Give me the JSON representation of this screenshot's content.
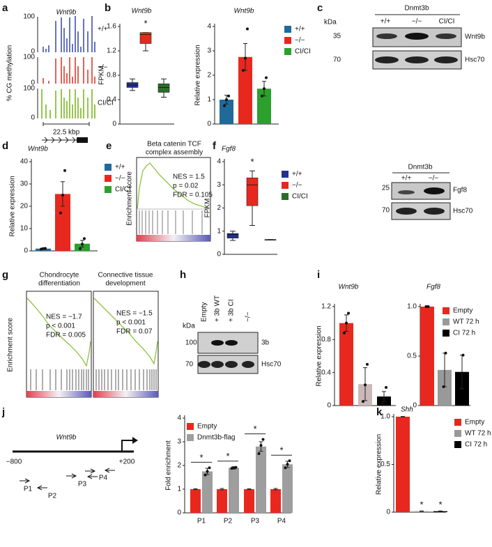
{
  "panel_labels": [
    "a",
    "b",
    "c",
    "d",
    "e",
    "f",
    "g",
    "h",
    "i",
    "j",
    "k"
  ],
  "panel_a": {
    "title": "Wnt9b",
    "ylabel": "% CG methylation",
    "tracks": [
      "+/+",
      "−/−",
      "CI/CI"
    ],
    "track_ticks": [
      100,
      0,
      100,
      0,
      100,
      0
    ],
    "scale": "22.5 kbp"
  },
  "blot_c": {
    "header": "Dnmt3b",
    "lanes": [
      "+/+",
      "−/−",
      "CI/CI"
    ],
    "unit": "kDa",
    "markers": [
      35,
      70
    ],
    "bands": [
      "Wnt9b",
      "Hsc70"
    ]
  },
  "gsea_e": {
    "title_lines": [
      "Beta catenin TCF",
      "complex assembly"
    ],
    "ylabel": "Enrichment score",
    "stats": [
      "NES = 1.5",
      "p = 0.02",
      "FDR = 0.105"
    ]
  },
  "blot_f": {
    "header": "Dnmt3b",
    "lanes": [
      "+/+",
      "−/−"
    ],
    "markers": [
      25,
      70
    ],
    "bands": [
      "Fgf8",
      "Hsc70"
    ]
  },
  "gsea_g": {
    "ylabel": "Enrichment score",
    "plots": [
      {
        "title_lines": [
          "Chondrocyte",
          "differentiation"
        ],
        "stats": [
          "NES = −1.7",
          "p < 0.001",
          "FDR = 0.005"
        ]
      },
      {
        "title_lines": [
          "Connective tissue",
          "development"
        ],
        "stats": [
          "NES = −1.5",
          "p < 0.001",
          "FDR = 0.07"
        ]
      }
    ]
  },
  "blot_h": {
    "unit": "kDa",
    "lanes": [
      "Empty",
      "+ 3b WT",
      "+ 3b CI",
      "−/−"
    ],
    "markers": [
      100,
      70
    ],
    "bands": [
      "3b",
      "Hsc70"
    ]
  },
  "diagram_j": {
    "gene": "Wnt9b",
    "start": "−800",
    "end": "+200",
    "primers": [
      "P1",
      "P2",
      "P3",
      "P4"
    ]
  },
  "chart_data": [
    {
      "type": "box",
      "title": "Wnt9b",
      "ylabel": "FPKM",
      "ylim": [
        0,
        1.6
      ],
      "yticks": [
        0,
        0.4,
        0.8,
        1.2,
        1.6
      ],
      "colors": [
        "#23318a",
        "#e8281e",
        "#2a6e2a"
      ],
      "boxes": [
        {
          "min": 0.55,
          "q1": 0.6,
          "median": 0.64,
          "q3": 0.68,
          "max": 0.74
        },
        {
          "min": 1.2,
          "q1": 1.32,
          "median": 1.47,
          "q3": 1.5,
          "max": 1.5
        },
        {
          "min": 0.44,
          "q1": 0.52,
          "median": 0.6,
          "q3": 0.66,
          "max": 0.74
        }
      ],
      "stars": [
        null,
        "*",
        null
      ]
    },
    {
      "type": "bar",
      "title": "Wnt9b",
      "ylabel": "Relative expression",
      "ylim": [
        0,
        4
      ],
      "yticks": [
        0,
        1,
        2,
        3,
        4
      ],
      "names": [
        "+/+",
        "−/−",
        "CI/CI"
      ],
      "colors": [
        "#1f6a9a",
        "#e8281e",
        "#2ca02c"
      ],
      "values": [
        1.0,
        2.75,
        1.45
      ],
      "errors": [
        0.18,
        0.55,
        0.3
      ],
      "points": [
        [
          0.75,
          1.0,
          1.15
        ],
        [
          2.2,
          2.7,
          3.9
        ],
        [
          1.15,
          1.45,
          1.9
        ]
      ]
    },
    {
      "type": "bar",
      "title": "Wnt9b",
      "ylabel": "Relative expression",
      "ylim": [
        0,
        40
      ],
      "yticks": [
        0,
        10,
        20,
        30,
        40
      ],
      "names": [
        "+/+",
        "−/−",
        "CI/CI"
      ],
      "colors": [
        "#1f6a9a",
        "#e8281e",
        "#2ca02c"
      ],
      "values": [
        1.0,
        25.5,
        3.2
      ],
      "errors": [
        0.2,
        5.5,
        1.5
      ],
      "points": [
        [
          0.8,
          1.0,
          1.1
        ],
        [
          17,
          25,
          36
        ],
        [
          1,
          3,
          5.5
        ]
      ]
    },
    {
      "type": "box",
      "title": "Fgf8",
      "ylabel": "FPKM",
      "ylim": [
        0,
        4
      ],
      "yticks": [
        0,
        1,
        2,
        3,
        4
      ],
      "names": [
        "+/+",
        "−/−",
        "CI/CI"
      ],
      "colors": [
        "#23318a",
        "#e8281e",
        "#2a6e2a"
      ],
      "boxes": [
        {
          "min": 0.6,
          "q1": 0.7,
          "median": 0.85,
          "q3": 0.9,
          "max": 1.0
        },
        {
          "min": 1.25,
          "q1": 2.1,
          "median": 3.0,
          "q3": 3.3,
          "max": 3.6
        },
        {
          "min": 0.62,
          "q1": 0.62,
          "median": 0.63,
          "q3": 0.64,
          "max": 0.64
        }
      ],
      "stars": [
        null,
        "*",
        null
      ]
    },
    {
      "type": "bar",
      "title": "Wnt9b",
      "ylabel": "Relative expression",
      "ylim": [
        0,
        1.2
      ],
      "yticks": [
        0,
        0.4,
        0.8,
        1.2
      ],
      "colors": [
        "#e8281e",
        "#cbb9b9",
        "#000000"
      ],
      "values": [
        1.0,
        0.26,
        0.11
      ],
      "errors": [
        0.1,
        0.2,
        0.06
      ],
      "points": [
        [
          0.88,
          1.0,
          1.12
        ],
        [
          0.05,
          0.25,
          0.5
        ],
        [
          0.03,
          0.08,
          0.22
        ]
      ]
    },
    {
      "type": "bar",
      "title": "Fgf8",
      "ylim": [
        0,
        1
      ],
      "yticks": [
        0,
        0.5,
        {
          "value": 1,
          "label": "1.0"
        }
      ],
      "names": [
        "Empty",
        "WT 72 h",
        "CI 72 h"
      ],
      "colors": [
        "#e8281e",
        "#999999",
        "#000000"
      ],
      "values": [
        1.0,
        0.36,
        0.34
      ],
      "errors": [
        0.005,
        0.17,
        0.17
      ],
      "points": [
        [
          1.0,
          1.0
        ],
        [
          0.19,
          0.53
        ],
        [
          0.17,
          0.51
        ]
      ]
    },
    {
      "type": "grouped_bar",
      "ylabel": "Fold enrichment",
      "ylim": [
        0,
        4
      ],
      "yticks": [
        0,
        1,
        2,
        3,
        4
      ],
      "categories": [
        "P1",
        "P2",
        "P3",
        "P4"
      ],
      "series": [
        {
          "name": "Empty",
          "color": "#e8281e",
          "values": [
            1,
            1,
            1,
            1
          ],
          "errors": [
            0.02,
            0.03,
            0.02,
            0.03
          ]
        },
        {
          "name": "Dnmt3b-flag",
          "color": "#9e9e9e",
          "values": [
            1.75,
            1.9,
            2.8,
            2.05
          ],
          "errors": [
            0.13,
            0.05,
            0.2,
            0.13
          ],
          "points": [
            [
              1.6,
              1.75,
              1.9
            ],
            [
              1.88,
              1.9,
              1.92
            ],
            [
              2.5,
              2.85,
              3.1
            ],
            [
              1.9,
              2.05,
              2.2
            ]
          ]
        }
      ],
      "stars": [
        "*",
        "*",
        "*",
        "*"
      ]
    },
    {
      "type": "bar",
      "title": "Shh",
      "ylabel": "Relative expression",
      "ylim": [
        0,
        1
      ],
      "yticks": [
        0,
        0.5,
        {
          "value": 1,
          "label": "1.0"
        }
      ],
      "names": [
        "Empty",
        "WT 72 h",
        "CI 72 h"
      ],
      "colors": [
        "#e8281e",
        "#999999",
        "#000000"
      ],
      "values": [
        1.0,
        0.01,
        0.01
      ],
      "errors": [
        0.003,
        0.003,
        0.003
      ],
      "stars": [
        null,
        "*",
        "*"
      ]
    }
  ]
}
